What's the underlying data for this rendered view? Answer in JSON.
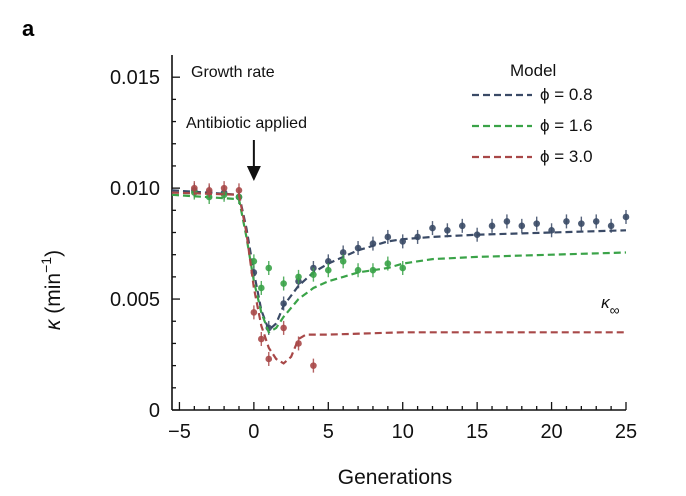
{
  "chart_data": {
    "type": "line",
    "panel_label": "a",
    "title": "",
    "xlabel": "Generations",
    "ylabel": "κ (min⁻¹)",
    "ylabel_parts": {
      "symbol": "κ",
      "unit_base": "(min",
      "unit_exp": "−1",
      "unit_close": ")"
    },
    "xlim": [
      -5.5,
      25
    ],
    "ylim": [
      0,
      0.016
    ],
    "x_ticks": [
      -5,
      0,
      5,
      10,
      15,
      20,
      25
    ],
    "x_tick_labels": [
      "−5",
      "0",
      "5",
      "10",
      "15",
      "20",
      "25"
    ],
    "y_ticks": [
      0,
      0.005,
      0.01,
      0.015
    ],
    "y_tick_labels": [
      "0",
      "0.005",
      "0.010",
      "0.015"
    ],
    "grid": false,
    "legend": {
      "title": "Model",
      "position": "top-right",
      "entries": [
        {
          "label": "ϕ = 0.8",
          "color": "#3a4a66"
        },
        {
          "label": "ϕ = 1.6",
          "color": "#3aa348"
        },
        {
          "label": "ϕ = 3.0",
          "color": "#a84848"
        }
      ]
    },
    "annotations": {
      "growth_rate": "Growth rate",
      "antibiotic": "Antibiotic applied",
      "antibiotic_x": 0,
      "kappa_inf": {
        "symbol": "κ",
        "subscript": "∞",
        "x": 24,
        "y": 0.0046
      }
    },
    "series": [
      {
        "color": "#3a4a66",
        "model": [
          [
            -5.5,
            0.0099
          ],
          [
            -1,
            0.0097
          ],
          [
            -0.5,
            0.0082
          ],
          [
            0,
            0.0062
          ],
          [
            0.5,
            0.0045
          ],
          [
            1,
            0.0036
          ],
          [
            1.5,
            0.0039
          ],
          [
            2,
            0.0047
          ],
          [
            3,
            0.0056
          ],
          [
            4,
            0.0062
          ],
          [
            5,
            0.0066
          ],
          [
            6,
            0.0069
          ],
          [
            7,
            0.0072
          ],
          [
            8,
            0.0074
          ],
          [
            9,
            0.0076
          ],
          [
            10,
            0.0077
          ],
          [
            12,
            0.0078
          ],
          [
            15,
            0.0079
          ],
          [
            20,
            0.008
          ],
          [
            25,
            0.0081
          ]
        ],
        "points": [
          [
            -4,
            0.0099
          ],
          [
            -3,
            0.0098
          ],
          [
            -2,
            0.0098
          ],
          [
            -1,
            0.0096
          ],
          [
            0,
            0.0062
          ],
          [
            1,
            0.0037
          ],
          [
            2,
            0.0048
          ],
          [
            3,
            0.0058
          ],
          [
            4,
            0.0064
          ],
          [
            5,
            0.0067
          ],
          [
            6,
            0.0071
          ],
          [
            7,
            0.0073
          ],
          [
            8,
            0.0075
          ],
          [
            9,
            0.0078
          ],
          [
            10,
            0.0076
          ],
          [
            11,
            0.0078
          ],
          [
            12,
            0.0082
          ],
          [
            13,
            0.0081
          ],
          [
            14,
            0.0083
          ],
          [
            15,
            0.0079
          ],
          [
            16,
            0.0083
          ],
          [
            17,
            0.0085
          ],
          [
            18,
            0.0083
          ],
          [
            19,
            0.0084
          ],
          [
            20,
            0.0081
          ],
          [
            21,
            0.0085
          ],
          [
            22,
            0.0084
          ],
          [
            23,
            0.0085
          ],
          [
            24,
            0.0083
          ],
          [
            25,
            0.0087
          ]
        ]
      },
      {
        "color": "#3aa348",
        "model": [
          [
            -5.5,
            0.0097
          ],
          [
            -1,
            0.0095
          ],
          [
            -0.5,
            0.0078
          ],
          [
            0,
            0.0058
          ],
          [
            0.5,
            0.0044
          ],
          [
            1,
            0.0035
          ],
          [
            1.5,
            0.0037
          ],
          [
            2,
            0.0042
          ],
          [
            3,
            0.005
          ],
          [
            4,
            0.0055
          ],
          [
            5,
            0.0058
          ],
          [
            6,
            0.006
          ],
          [
            7,
            0.0062
          ],
          [
            8,
            0.0063
          ],
          [
            9,
            0.0064
          ],
          [
            10,
            0.0066
          ],
          [
            12,
            0.0068
          ],
          [
            15,
            0.0069
          ],
          [
            20,
            0.007
          ],
          [
            25,
            0.0071
          ]
        ],
        "points": [
          [
            -4,
            0.0098
          ],
          [
            -3,
            0.0096
          ],
          [
            -2,
            0.0097
          ],
          [
            -1,
            0.0096
          ],
          [
            0,
            0.0067
          ],
          [
            0.5,
            0.0055
          ],
          [
            1,
            0.0064
          ],
          [
            2,
            0.0057
          ],
          [
            3,
            0.006
          ],
          [
            4,
            0.0061
          ],
          [
            5,
            0.0063
          ],
          [
            6,
            0.0067
          ],
          [
            7,
            0.0063
          ],
          [
            8,
            0.0063
          ],
          [
            9,
            0.0066
          ],
          [
            10,
            0.0064
          ]
        ]
      },
      {
        "color": "#a84848",
        "model": [
          [
            -5.5,
            0.0098
          ],
          [
            -1,
            0.0097
          ],
          [
            -0.5,
            0.008
          ],
          [
            0,
            0.0055
          ],
          [
            0.5,
            0.0038
          ],
          [
            1,
            0.0028
          ],
          [
            1.5,
            0.0023
          ],
          [
            2,
            0.0021
          ],
          [
            2.5,
            0.0024
          ],
          [
            3,
            0.0032
          ],
          [
            3.5,
            0.0034
          ],
          [
            5,
            0.0034
          ],
          [
            10,
            0.0035
          ],
          [
            15,
            0.0035
          ],
          [
            20,
            0.0035
          ],
          [
            25,
            0.0035
          ]
        ],
        "points": [
          [
            -4,
            0.01
          ],
          [
            -3,
            0.0099
          ],
          [
            -2,
            0.01
          ],
          [
            -1,
            0.0099
          ],
          [
            0,
            0.0044
          ],
          [
            0.5,
            0.0032
          ],
          [
            1,
            0.0023
          ],
          [
            2,
            0.0037
          ],
          [
            3,
            0.003
          ],
          [
            4,
            0.002
          ]
        ]
      }
    ]
  }
}
